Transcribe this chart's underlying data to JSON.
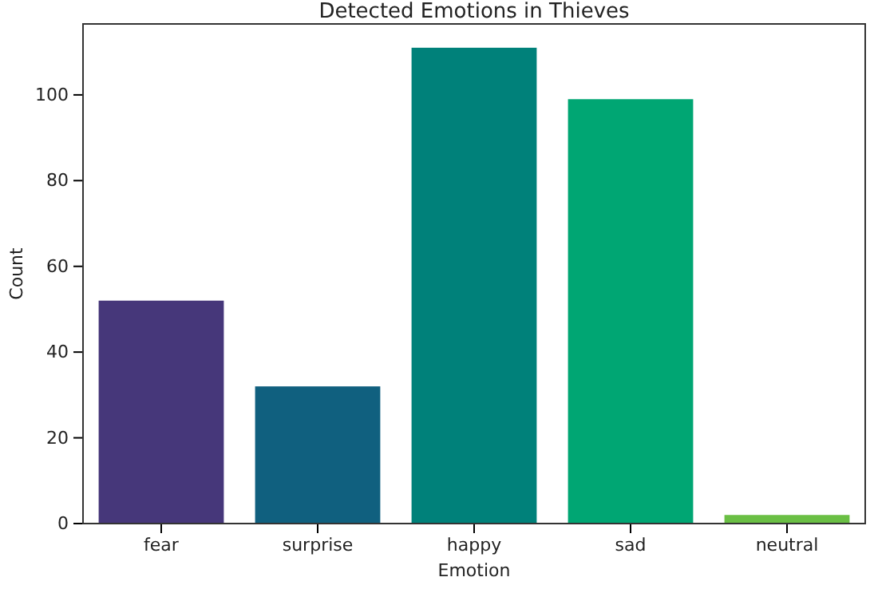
{
  "chart_data": {
    "type": "bar",
    "title": "Detected Emotions in Thieves",
    "xlabel": "Emotion",
    "ylabel": "Count",
    "categories": [
      "fear",
      "surprise",
      "happy",
      "sad",
      "neutral"
    ],
    "values": [
      52,
      32,
      111,
      99,
      2
    ],
    "colors": [
      "#46377a",
      "#10607f",
      "#00817a",
      "#00a673",
      "#6abf44"
    ],
    "ylim": [
      0,
      116.55
    ],
    "yticks": [
      0,
      20,
      40,
      60,
      80,
      100
    ],
    "grid": false
  }
}
